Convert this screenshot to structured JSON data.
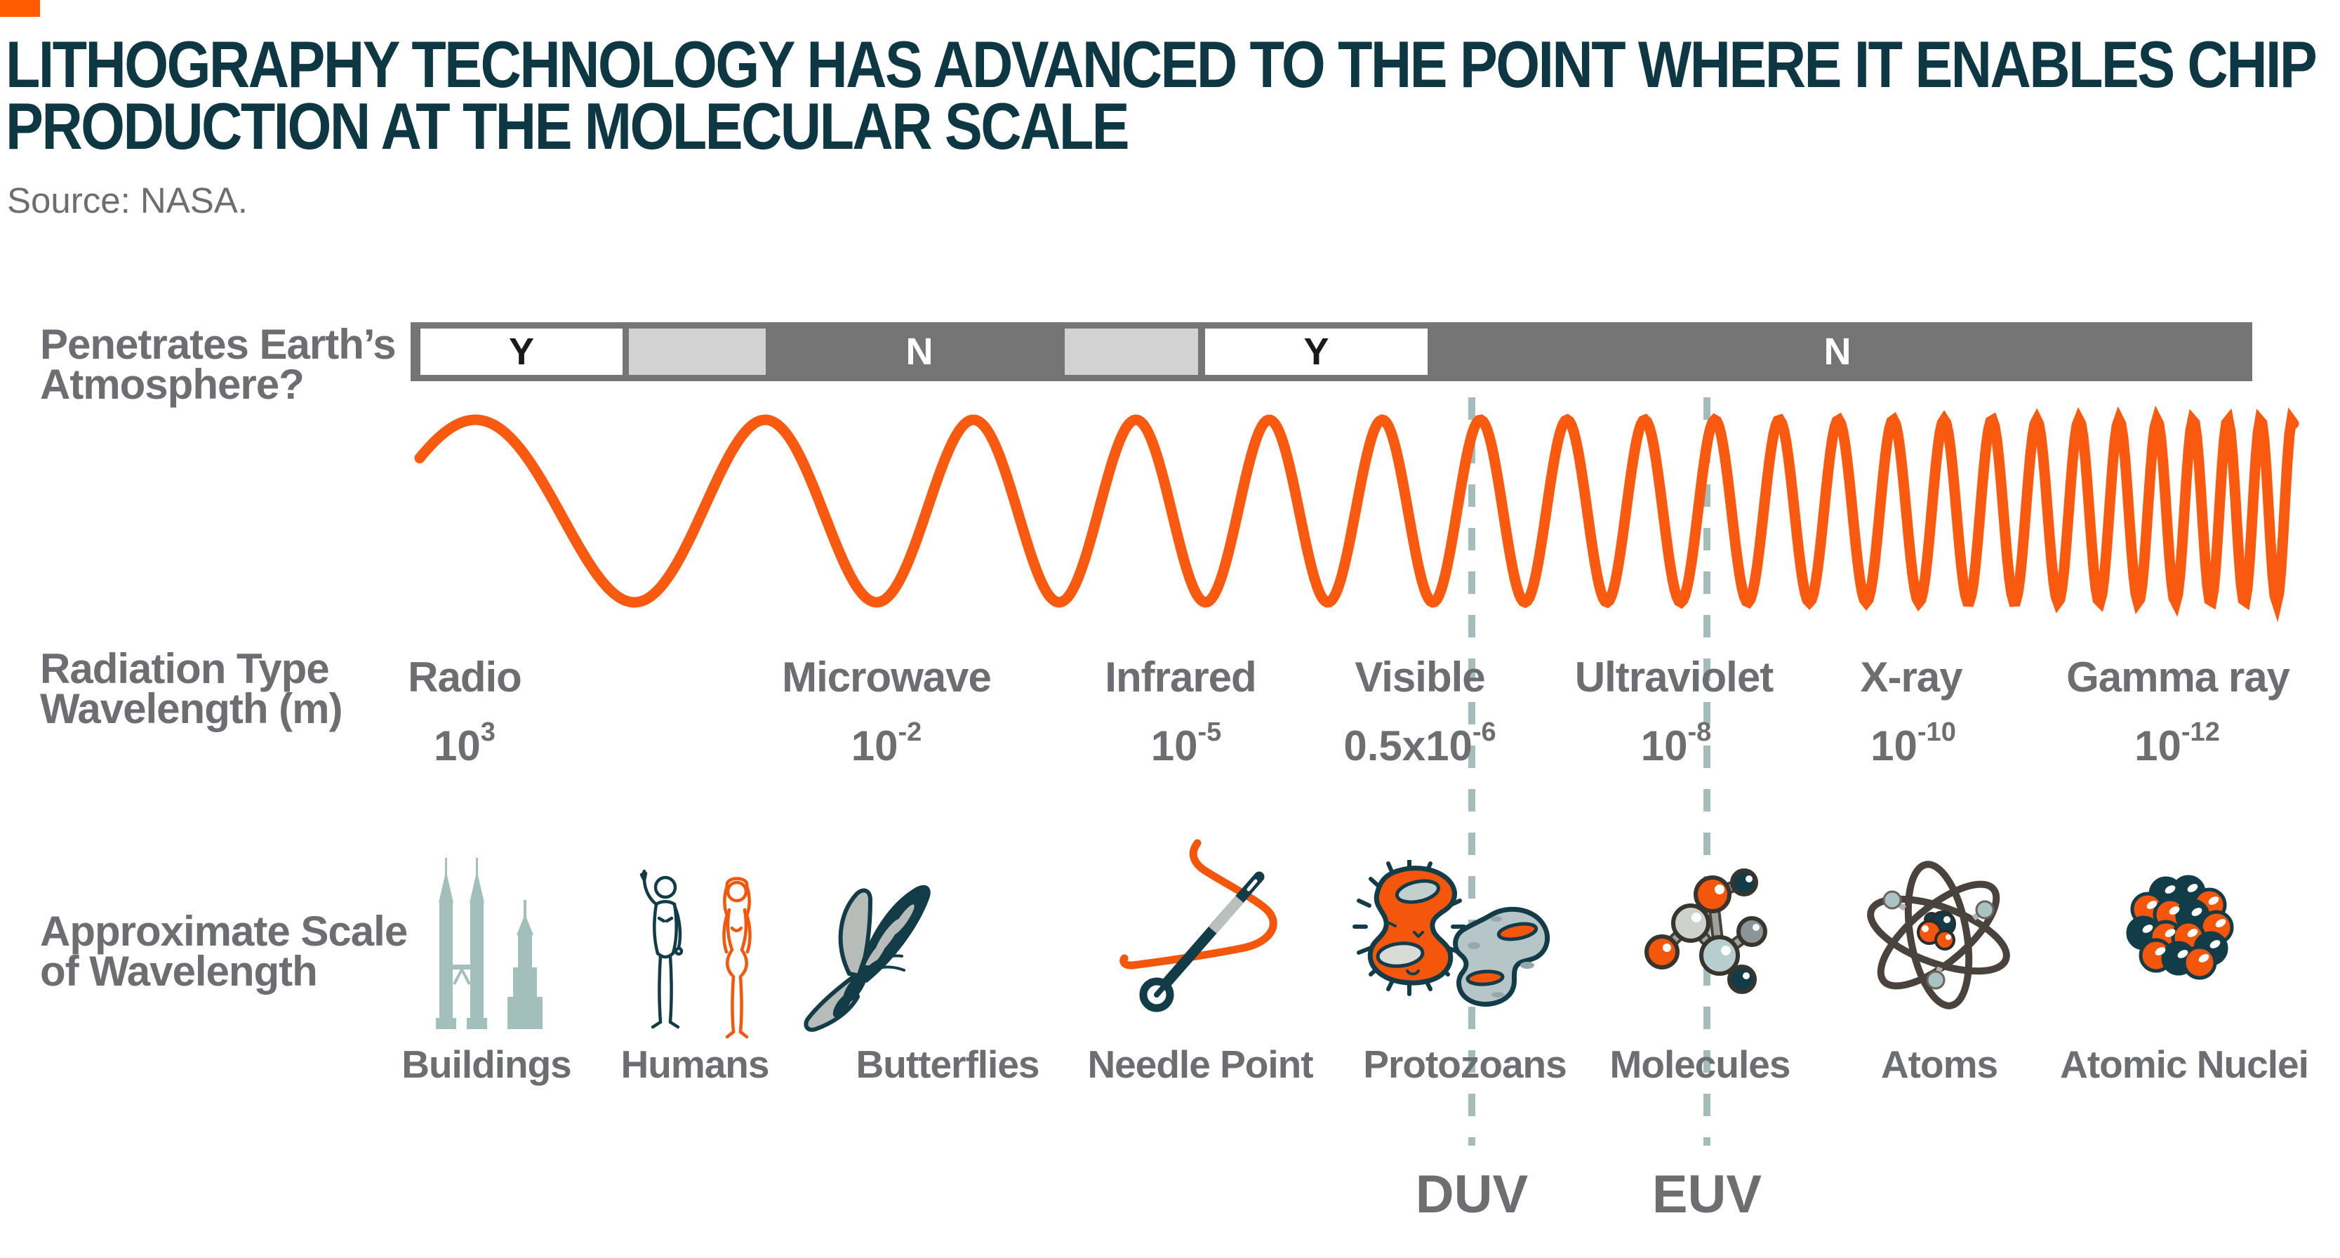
{
  "colors": {
    "accent_orange": "#f95a0f",
    "dark_teal": "#0d3843",
    "icon_teal": "#123c47",
    "text_gray": "#6d6e71",
    "bar_gray": "#767576",
    "bar_light_gray": "#d2d2d2",
    "dash_teal": "#a4bcba",
    "building_teal": "#a3bfbc"
  },
  "header": {
    "title_line1": "LITHOGRAPHY TECHNOLOGY HAS ADVANCED TO THE POINT WHERE IT ENABLES CHIP",
    "title_line2": "PRODUCTION AT THE MOLECULAR SCALE",
    "source": "Source: NASA."
  },
  "row_labels": {
    "atmosphere_line1": "Penetrates Earth’s",
    "atmosphere_line2": "Atmosphere?",
    "radiation_line1": "Radiation Type",
    "radiation_line2": "Wavelength (m)",
    "scale_line1": "Approximate Scale",
    "scale_line2": "of Wavelength"
  },
  "atmosphere_bar": {
    "segments": [
      {
        "label": "Y"
      },
      {
        "label": "N"
      },
      {
        "label": "Y"
      },
      {
        "label": "N"
      }
    ]
  },
  "spectrum": {
    "bands": [
      {
        "name": "Radio",
        "wavelength_base": "10",
        "wavelength_exp": "3"
      },
      {
        "name": "Microwave",
        "wavelength_base": "10",
        "wavelength_exp": "-2"
      },
      {
        "name": "Infrared",
        "wavelength_base": "10",
        "wavelength_exp": "-5"
      },
      {
        "name": "Visible",
        "wavelength_base": "0.5x10",
        "wavelength_exp": "-6"
      },
      {
        "name": "Ultraviolet",
        "wavelength_base": "10",
        "wavelength_exp": "-8"
      },
      {
        "name": "X-ray",
        "wavelength_base": "10",
        "wavelength_exp": "-10"
      },
      {
        "name": "Gamma ray",
        "wavelength_base": "10",
        "wavelength_exp": "-12"
      }
    ]
  },
  "scale_row": {
    "items": [
      {
        "label": "Buildings",
        "icon": "buildings-icon"
      },
      {
        "label": "Humans",
        "icon": "humans-icon"
      },
      {
        "label": "Butterflies",
        "icon": "butterfly-icon"
      },
      {
        "label": "Needle Point",
        "icon": "needle-icon"
      },
      {
        "label": "Protozoans",
        "icon": "protozoans-icon"
      },
      {
        "label": "Molecules",
        "icon": "molecule-icon"
      },
      {
        "label": "Atoms",
        "icon": "atom-icon"
      },
      {
        "label": "Atomic Nuclei",
        "icon": "atomic-nuclei-icon"
      }
    ]
  },
  "annotations": {
    "duv": "DUV",
    "euv": "EUV"
  }
}
